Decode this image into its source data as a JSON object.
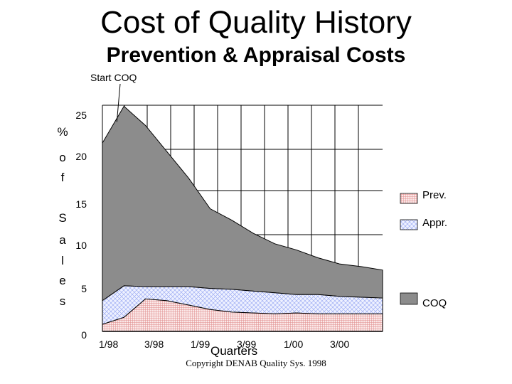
{
  "chart_data": {
    "type": "area",
    "title": "Cost of Quality History",
    "subtitle": "Prevention & Appraisal Costs",
    "xlabel": "Quarters",
    "ylabel_letters": [
      "%",
      "o",
      "f",
      "S",
      "a",
      "l",
      "e",
      "s"
    ],
    "ylim": [
      0,
      25
    ],
    "y_ticks": [
      25,
      20,
      15,
      10,
      5,
      0
    ],
    "x_tick_labels": [
      "1/98",
      "3/98",
      "1/99",
      "3/99",
      "1/00",
      "3/00"
    ],
    "x": [
      0,
      1,
      2,
      3,
      4,
      5,
      6,
      7,
      8,
      9,
      10,
      11,
      12,
      13
    ],
    "series": [
      {
        "name": "Prev.",
        "values": [
          0.8,
          1.6,
          3.7,
          3.5,
          3.0,
          2.5,
          2.2,
          2.1,
          2.0,
          2.1,
          2.0,
          2.0,
          2.0,
          2.0
        ]
      },
      {
        "name": "Appr.",
        "values": [
          3.5,
          5.2,
          5.1,
          5.1,
          5.1,
          4.9,
          4.8,
          4.6,
          4.4,
          4.2,
          4.2,
          4.0,
          3.9,
          3.8
        ]
      },
      {
        "name": "COQ",
        "values": [
          21.5,
          25.7,
          23.5,
          20.5,
          17.5,
          14.0,
          12.7,
          11.2,
          10.0,
          9.3,
          8.4,
          7.7,
          7.4,
          7.0
        ]
      }
    ],
    "legend_position": "right",
    "annotation": "Start COQ",
    "grid": true,
    "colors": {
      "prev": "#f2c9c9",
      "appr": "#c9d3ff",
      "coq": "#8c8c8c"
    }
  },
  "copyright": "Copyright DENAB Quality Sys. 1998"
}
